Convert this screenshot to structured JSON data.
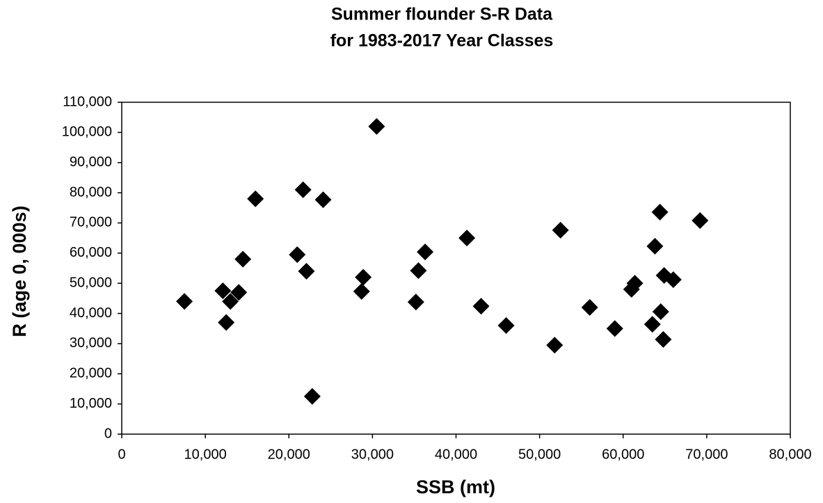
{
  "chart_data": {
    "type": "scatter",
    "title_lines": [
      "Summer flounder S-R Data",
      "for 1983-2017 Year Classes"
    ],
    "x_label": "SSB (mt)",
    "y_label": "R (age 0, 000s)",
    "color": "#000000",
    "marker": "diamond",
    "x": [
      7500,
      12100,
      12500,
      13000,
      14000,
      14500,
      16000,
      21000,
      21700,
      22100,
      22800,
      24100,
      28700,
      28900,
      30500,
      35200,
      35500,
      36300,
      41300,
      43000,
      46000,
      51800,
      52500,
      56000,
      59000,
      61000,
      61400,
      63500,
      63800,
      64400,
      64500,
      64800,
      64900,
      66000,
      69200
    ],
    "values": [
      44000,
      47500,
      37000,
      44000,
      47000,
      58000,
      78000,
      59500,
      81000,
      54000,
      12500,
      77700,
      47300,
      52000,
      102000,
      43800,
      54200,
      60400,
      65000,
      42400,
      36000,
      29500,
      67600,
      42000,
      35000,
      48000,
      50000,
      36400,
      62300,
      73600,
      40600,
      31400,
      52600,
      51200,
      70800
    ],
    "xlim": [
      0,
      80000
    ],
    "xticks": [
      0,
      {
        "value": 10000,
        "label": "10,000"
      },
      {
        "value": 20000,
        "label": "20,000"
      },
      {
        "value": 30000,
        "label": "30,000"
      },
      {
        "value": 40000,
        "label": "40,000"
      },
      {
        "value": 50000,
        "label": "50,000"
      },
      {
        "value": 60000,
        "label": "60,000"
      },
      {
        "value": 70000,
        "label": "70,000"
      },
      {
        "value": 80000,
        "label": "80,000"
      }
    ],
    "ylim": [
      0,
      110000
    ],
    "yticks": [
      0,
      {
        "value": 10000,
        "label": "10,000"
      },
      {
        "value": 20000,
        "label": "20,000"
      },
      {
        "value": 30000,
        "label": "30,000"
      },
      {
        "value": 40000,
        "label": "40,000"
      },
      {
        "value": 50000,
        "label": "50,000"
      },
      {
        "value": 60000,
        "label": "60,000"
      },
      {
        "value": 70000,
        "label": "70,000"
      },
      {
        "value": 80000,
        "label": "80,000"
      },
      {
        "value": 90000,
        "label": "90,000"
      },
      {
        "value": 100000,
        "label": "100,000"
      },
      {
        "value": 110000,
        "label": "110,000"
      }
    ],
    "grid": false
  }
}
